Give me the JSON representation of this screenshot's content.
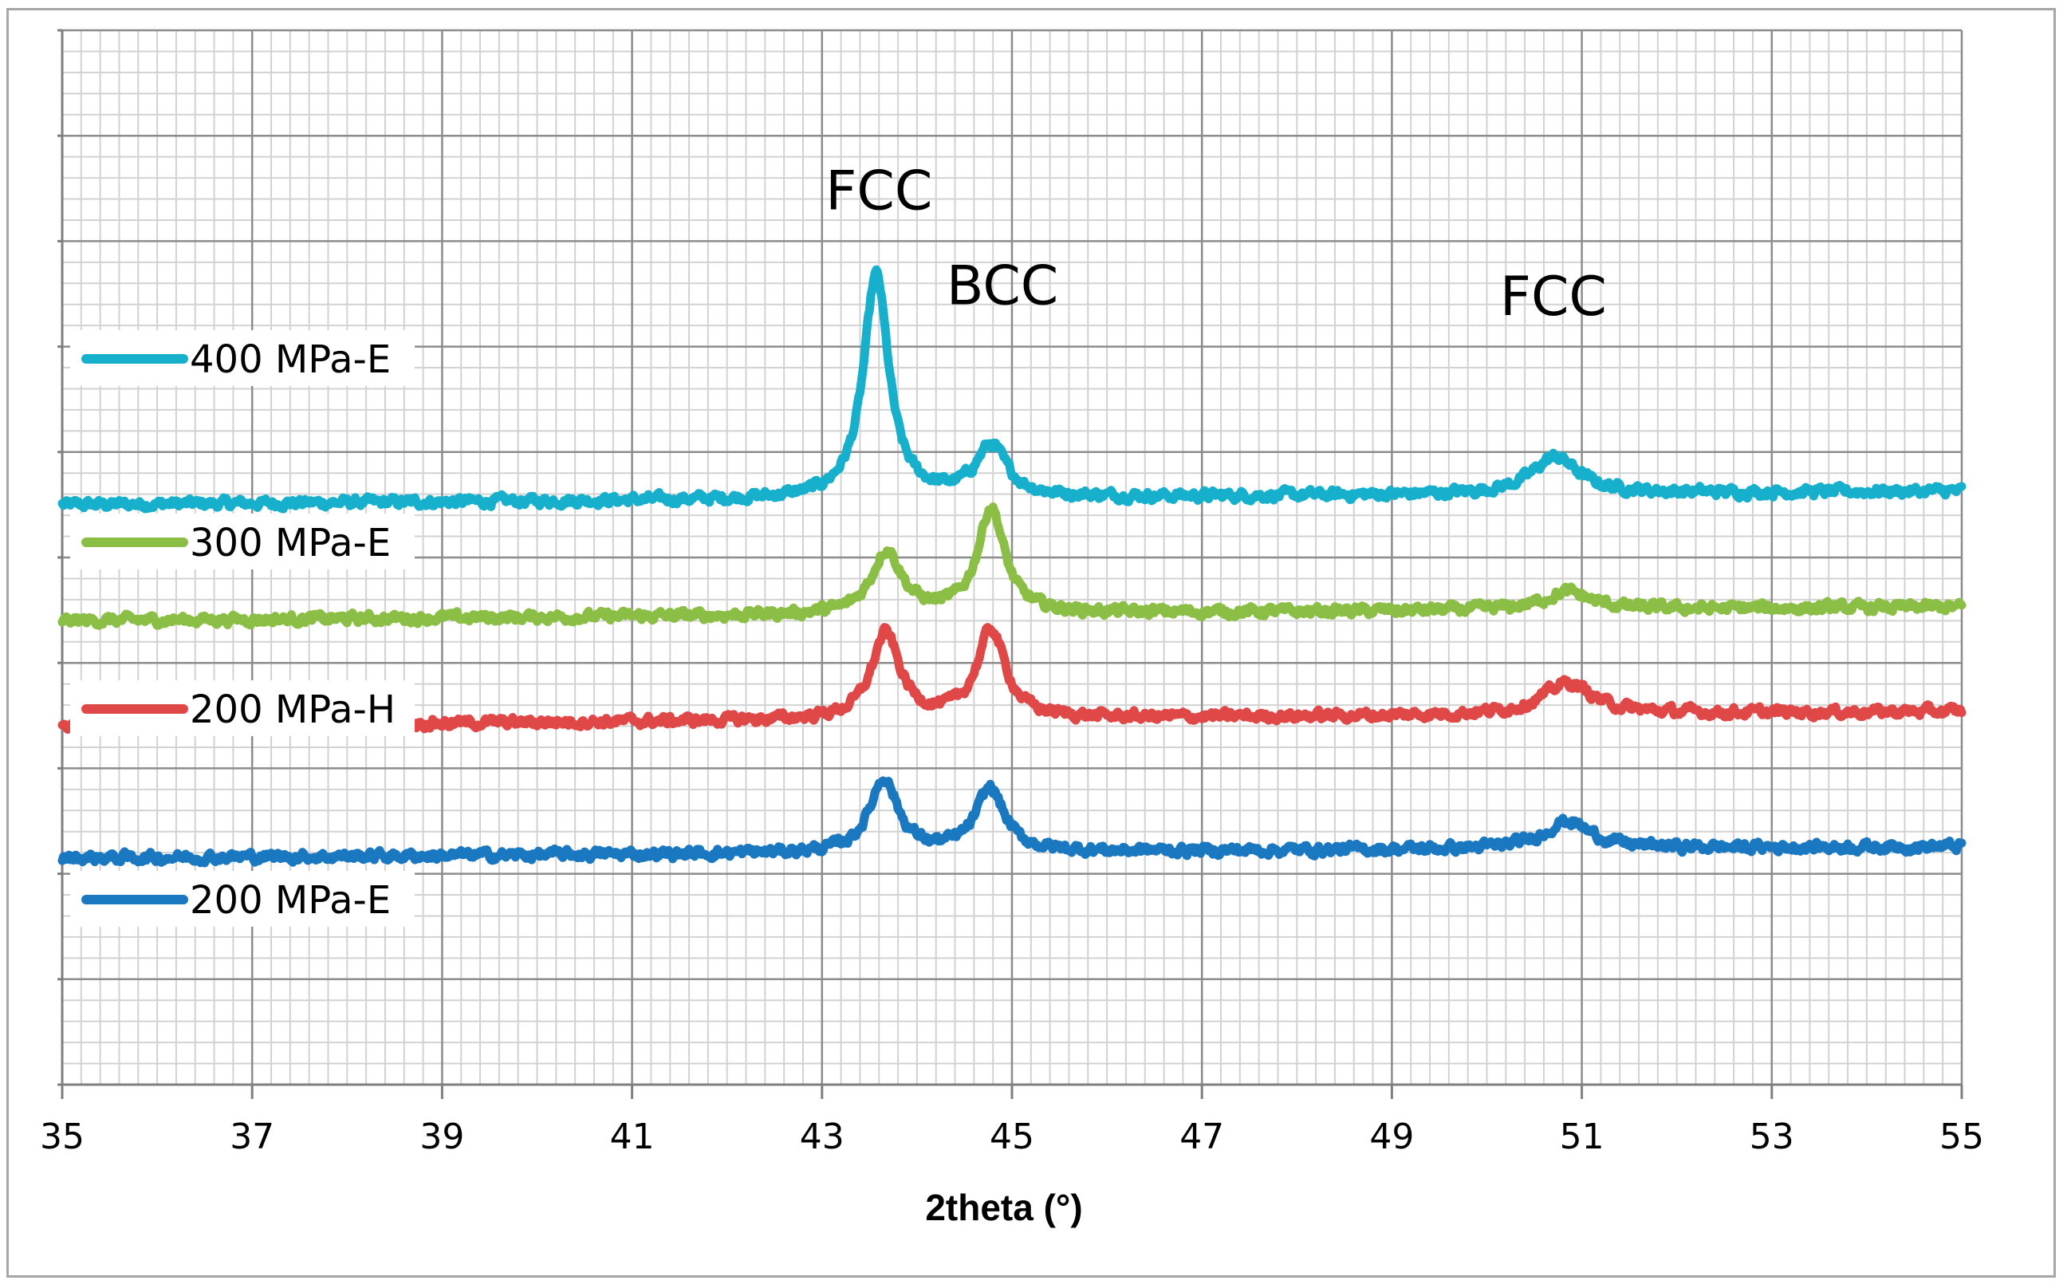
{
  "chart_data": {
    "type": "line",
    "title": "",
    "xlabel": "2theta (°)",
    "ylabel": "",
    "xlim": [
      35,
      55
    ],
    "x_ticks": [
      35,
      37,
      39,
      41,
      43,
      45,
      47,
      49,
      51,
      53,
      55
    ],
    "ylim": [
      0,
      100
    ],
    "y_ticks_unlabeled": true,
    "grid": true,
    "legend": "left, beside each curve",
    "annotations": [
      {
        "text": "FCC",
        "x": 43.6,
        "y": 83
      },
      {
        "text": "BCC",
        "x": 44.9,
        "y": 74
      },
      {
        "text": "FCC",
        "x": 50.7,
        "y": 73
      }
    ],
    "series": [
      {
        "name": "400 MPa-E",
        "color": "#17b0cc",
        "baseline": 55.0,
        "end_baseline": 56.3,
        "peaks": [
          {
            "center": 43.57,
            "height": 21.2,
            "width": 0.16
          },
          {
            "center": 44.78,
            "height": 4.8,
            "width": 0.2
          },
          {
            "center": 50.72,
            "height": 3.5,
            "width": 0.3
          }
        ]
      },
      {
        "name": "300 MPa-E",
        "color": "#8bbe45",
        "baseline": 44.0,
        "end_baseline": 45.3,
        "peaks": [
          {
            "center": 43.68,
            "height": 6.0,
            "width": 0.19
          },
          {
            "center": 44.78,
            "height": 10.0,
            "width": 0.17
          },
          {
            "center": 50.85,
            "height": 1.7,
            "width": 0.3
          }
        ]
      },
      {
        "name": "200 MPa-H",
        "color": "#e04848",
        "baseline": 34.0,
        "end_baseline": 35.4,
        "peaks": [
          {
            "center": 43.67,
            "height": 8.1,
            "width": 0.18
          },
          {
            "center": 44.78,
            "height": 8.4,
            "width": 0.18
          },
          {
            "center": 50.85,
            "height": 3.0,
            "width": 0.32
          }
        ]
      },
      {
        "name": "200 MPa-E",
        "color": "#1a78c0",
        "baseline": 21.5,
        "end_baseline": 22.6,
        "peaks": [
          {
            "center": 43.65,
            "height": 7.0,
            "width": 0.18
          },
          {
            "center": 44.77,
            "height": 6.0,
            "width": 0.18
          },
          {
            "center": 50.85,
            "height": 2.6,
            "width": 0.3
          }
        ]
      }
    ]
  }
}
